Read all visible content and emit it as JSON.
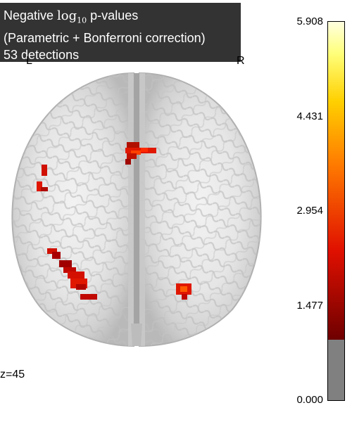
{
  "title": {
    "line1_prefix": "Negative ",
    "line1_math": "log",
    "line1_sub": "10",
    "line1_suffix": " p-values",
    "line2": "(Parametric + Bonferroni correction)",
    "line3": "53 detections"
  },
  "orientation": {
    "left": "L",
    "right": "R"
  },
  "slice": {
    "label": "z=45"
  },
  "colorbar": {
    "ticks": [
      "5.908",
      "4.431",
      "2.954",
      "1.477",
      "0.000"
    ],
    "vmin": 0.0,
    "vmax": 5.908,
    "threshold": 0.94,
    "colormap": "hot",
    "below_threshold_color": "#808080"
  },
  "colors": {
    "title_bg": "#333333",
    "title_text": "#ffffff",
    "hot_dark": "#6e0000",
    "hot_red": "#e01000",
    "hot_orange": "#ff7a00",
    "hot_yellow": "#ffff7a",
    "brain_light": "#ececec",
    "brain_mid": "#cfcfcf",
    "brain_dark": "#a9a9a9"
  }
}
